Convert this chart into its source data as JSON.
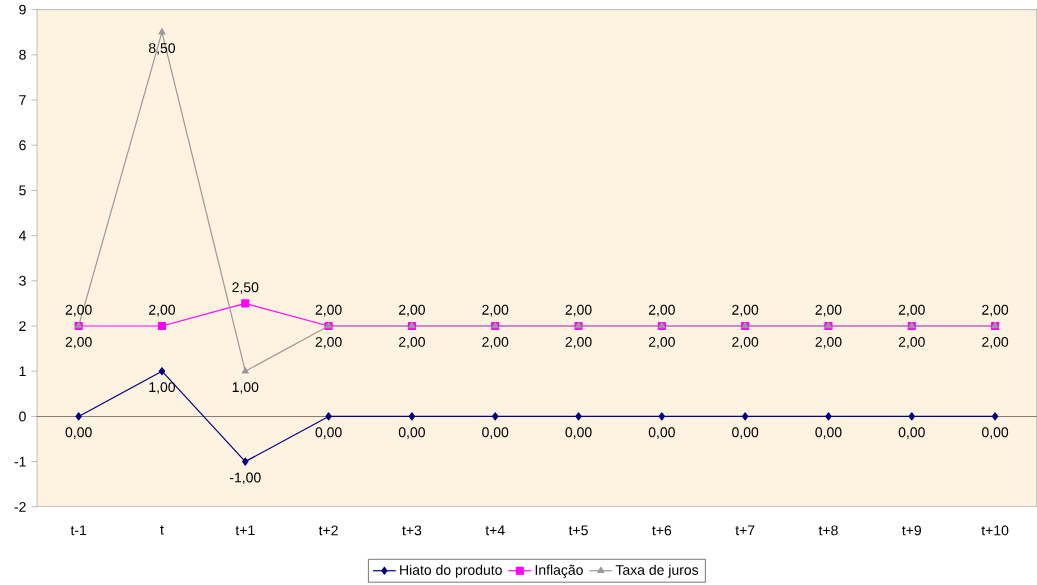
{
  "chart_data": {
    "type": "line",
    "categories": [
      "t-1",
      "t",
      "t+1",
      "t+2",
      "t+3",
      "t+4",
      "t+5",
      "t+6",
      "t+7",
      "t+8",
      "t+9",
      "t+10"
    ],
    "ylim": [
      -2,
      9
    ],
    "yticks": [
      -2,
      -1,
      0,
      1,
      2,
      3,
      4,
      5,
      6,
      7,
      8,
      9
    ],
    "legend": "bottom",
    "line_style": "solid",
    "series": [
      {
        "name": "Hiato do produto",
        "color": "#000080",
        "marker": "diamond",
        "values": [
          0,
          1,
          -1,
          0,
          0,
          0,
          0,
          0,
          0,
          0,
          0,
          0
        ],
        "value_labels": [
          "0,00",
          "1,00",
          "-1,00",
          "0,00",
          "0,00",
          "0,00",
          "0,00",
          "0,00",
          "0,00",
          "0,00",
          "0,00",
          "0,00"
        ]
      },
      {
        "name": "Inflação",
        "color": "#ff00ff",
        "marker": "square",
        "values": [
          2,
          2,
          2.5,
          2,
          2,
          2,
          2,
          2,
          2,
          2,
          2,
          2
        ],
        "value_labels": [
          "2,00",
          "2,00",
          "2,50",
          "2,00",
          "2,00",
          "2,00",
          "2,00",
          "2,00",
          "2,00",
          "2,00",
          "2,00",
          "2,00"
        ]
      },
      {
        "name": "Taxa de juros",
        "color": "#999999",
        "marker": "triangle",
        "values": [
          2,
          8.5,
          1,
          2,
          2,
          2,
          2,
          2,
          2,
          2,
          2,
          2
        ],
        "value_labels": [
          "2,00",
          "8,50",
          "1,00",
          "2,00",
          "2,00",
          "2,00",
          "2,00",
          "2,00",
          "2,00",
          "2,00",
          "2,00",
          "2,00"
        ]
      }
    ]
  }
}
